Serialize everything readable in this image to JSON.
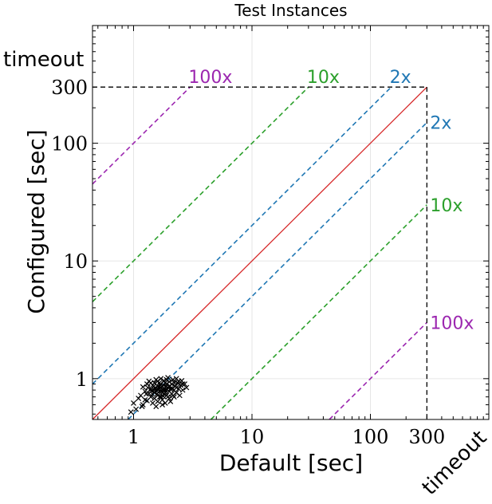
{
  "chart_data": {
    "type": "scatter",
    "title": "Test Instances",
    "xlabel": "Default [sec]",
    "ylabel": "Configured [sec]",
    "xscale": "log",
    "yscale": "log",
    "xlim": [
      0.45,
      1000
    ],
    "ylim": [
      0.45,
      1000
    ],
    "xticks": [
      {
        "value": 1,
        "label": "1"
      },
      {
        "value": 10,
        "label": "10"
      },
      {
        "value": 100,
        "label": "100"
      },
      {
        "value": 300,
        "label": "300"
      }
    ],
    "yticks": [
      {
        "value": 1,
        "label": "1"
      },
      {
        "value": 10,
        "label": "10"
      },
      {
        "value": 100,
        "label": "100"
      },
      {
        "value": 300,
        "label": "300"
      }
    ],
    "timeout_value": 300,
    "timeout_label_x": "timeout",
    "timeout_label_y": "timeout",
    "grid": true,
    "marker": "x",
    "marker_color": "#000000",
    "diagonal_color": "#d62728",
    "ratio_lines": [
      {
        "factor": 2,
        "label": "2x",
        "color": "#1f77b4"
      },
      {
        "factor": 10,
        "label": "10x",
        "color": "#2ca02c"
      },
      {
        "factor": 100,
        "label": "100x",
        "color": "#9c27b0"
      }
    ],
    "points": [
      [
        1.0,
        0.62
      ],
      [
        1.05,
        0.55
      ],
      [
        1.1,
        0.68
      ],
      [
        1.15,
        0.72
      ],
      [
        1.2,
        0.6
      ],
      [
        1.2,
        0.85
      ],
      [
        1.25,
        0.78
      ],
      [
        1.3,
        0.65
      ],
      [
        1.3,
        0.9
      ],
      [
        1.35,
        0.75
      ],
      [
        1.35,
        0.95
      ],
      [
        1.4,
        0.7
      ],
      [
        1.4,
        0.82
      ],
      [
        1.45,
        0.88
      ],
      [
        1.45,
        0.62
      ],
      [
        1.5,
        0.76
      ],
      [
        1.5,
        0.92
      ],
      [
        1.5,
        0.68
      ],
      [
        1.55,
        0.8
      ],
      [
        1.55,
        0.98
      ],
      [
        1.6,
        0.72
      ],
      [
        1.6,
        0.86
      ],
      [
        1.6,
        0.64
      ],
      [
        1.65,
        0.78
      ],
      [
        1.65,
        0.92
      ],
      [
        1.7,
        0.7
      ],
      [
        1.7,
        0.84
      ],
      [
        1.7,
        1.0
      ],
      [
        1.75,
        0.76
      ],
      [
        1.75,
        0.66
      ],
      [
        1.8,
        0.88
      ],
      [
        1.8,
        0.74
      ],
      [
        1.8,
        0.96
      ],
      [
        1.85,
        0.8
      ],
      [
        1.85,
        0.62
      ],
      [
        1.9,
        0.9
      ],
      [
        1.9,
        0.72
      ],
      [
        1.95,
        0.84
      ],
      [
        1.95,
        1.02
      ],
      [
        2.0,
        0.78
      ],
      [
        2.0,
        0.68
      ],
      [
        2.0,
        0.94
      ],
      [
        2.05,
        0.82
      ],
      [
        2.1,
        0.74
      ],
      [
        2.1,
        0.9
      ],
      [
        2.15,
        0.98
      ],
      [
        2.2,
        0.8
      ],
      [
        2.2,
        0.7
      ],
      [
        2.25,
        0.86
      ],
      [
        2.3,
        0.76
      ],
      [
        2.3,
        1.0
      ],
      [
        2.35,
        0.92
      ],
      [
        2.4,
        0.82
      ],
      [
        2.45,
        0.72
      ],
      [
        2.5,
        0.88
      ],
      [
        2.55,
        0.96
      ],
      [
        2.6,
        0.8
      ],
      [
        2.7,
        0.9
      ],
      [
        2.8,
        0.84
      ],
      [
        1.42,
        0.79
      ],
      [
        1.52,
        0.83
      ],
      [
        1.62,
        0.81
      ],
      [
        1.72,
        0.79
      ],
      [
        1.82,
        0.83
      ],
      [
        1.92,
        0.81
      ],
      [
        1.58,
        0.74
      ],
      [
        1.68,
        0.88
      ],
      [
        1.78,
        0.71
      ],
      [
        1.88,
        0.86
      ],
      [
        2.02,
        0.87
      ],
      [
        1.48,
        0.86
      ],
      [
        1.38,
        0.8
      ],
      [
        1.28,
        0.74
      ],
      [
        2.12,
        0.82
      ],
      [
        2.22,
        0.92
      ],
      [
        1.6,
        0.95
      ],
      [
        1.9,
        0.98
      ],
      [
        1.75,
        0.6
      ],
      [
        1.55,
        0.58
      ],
      [
        2.05,
        0.64
      ],
      [
        0.95,
        0.52
      ],
      [
        1.18,
        0.58
      ],
      [
        1.32,
        0.84
      ],
      [
        1.44,
        0.74
      ],
      [
        1.66,
        0.7
      ],
      [
        1.86,
        0.76
      ],
      [
        2.16,
        0.72
      ],
      [
        2.4,
        0.95
      ],
      [
        2.6,
        0.9
      ],
      [
        1.7,
        0.9
      ],
      [
        1.6,
        0.82
      ],
      [
        1.8,
        0.8
      ],
      [
        1.5,
        0.8
      ],
      [
        2.0,
        0.85
      ],
      [
        1.65,
        0.85
      ],
      [
        1.85,
        0.92
      ],
      [
        1.4,
        0.92
      ],
      [
        2.3,
        0.84
      ],
      [
        1.95,
        0.7
      ],
      [
        1.25,
        0.66
      ]
    ]
  }
}
